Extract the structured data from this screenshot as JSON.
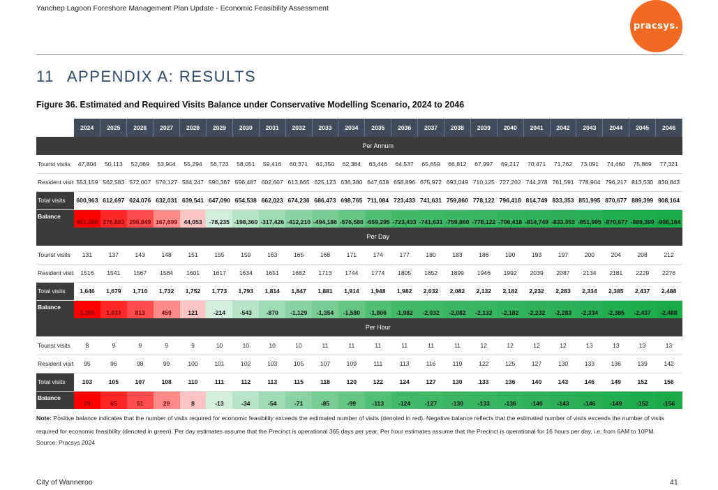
{
  "header": {
    "doc_title": "Yanchep Lagoon Foreshore Management Plan Update - Economic Feasibility Assessment",
    "logo_text": "pracsys."
  },
  "section": {
    "number": "11",
    "title": "APPENDIX A: RESULTS"
  },
  "figure_title": "Figure 36. Estimated and Required Visits Balance under Conservative Modelling Scenario, 2024 to 2046",
  "years": [
    "2024",
    "2025",
    "2026",
    "2027",
    "2028",
    "2029",
    "2030",
    "2031",
    "2032",
    "2033",
    "2034",
    "2035",
    "2036",
    "2037",
    "2038",
    "2039",
    "2040",
    "2041",
    "2042",
    "2043",
    "2044",
    "2045",
    "2046"
  ],
  "row_labels": {
    "tourist": "Tourist visits",
    "resident": "Resident visits",
    "total": "Total visits",
    "balance": "Balance"
  },
  "colors": {
    "positive_strong": "#ff0000",
    "negative_strong": "#1aaa4a",
    "header_bg": "#3f4a5a",
    "section_bg": "#3b3b3b",
    "accent": "#f26a21"
  },
  "sections": [
    {
      "title": "Per Annum",
      "tourist": [
        "47,804",
        "50,113",
        "52,069",
        "53,904",
        "55,294",
        "56,723",
        "58,051",
        "59,416",
        "60,371",
        "61,350",
        "62,384",
        "63,446",
        "64,537",
        "65,659",
        "66,812",
        "67,997",
        "69,217",
        "70,471",
        "71,762",
        "73,091",
        "74,460",
        "75,869",
        "77,321"
      ],
      "resident": [
        "553,159",
        "562,583",
        "572,007",
        "578,127",
        "584,247",
        "590,367",
        "596,487",
        "602,607",
        "613,865",
        "625,123",
        "636,380",
        "647,638",
        "658,896",
        "675,972",
        "693,049",
        "710,125",
        "727,202",
        "744,278",
        "761,591",
        "778,904",
        "796,217",
        "813,530",
        "830,843"
      ],
      "total": [
        "600,963",
        "612,697",
        "624,076",
        "632,031",
        "639,541",
        "647,090",
        "654,538",
        "662,023",
        "674,236",
        "686,473",
        "698,765",
        "711,084",
        "723,433",
        "741,631",
        "759,860",
        "778,122",
        "796,418",
        "814,749",
        "833,353",
        "851,995",
        "870,677",
        "889,399",
        "908,164"
      ],
      "balance": [
        "461,568",
        "376,883",
        "296,849",
        "167,699",
        "44,053",
        "-78,235",
        "-198,360",
        "-317,426",
        "-412,210",
        "-494,186",
        "-576,580",
        "-659,295",
        "-723,433",
        "-741,631",
        "-759,860",
        "-778,122",
        "-796,418",
        "-814,749",
        "-833,353",
        "-851,995",
        "-870,677",
        "-889,399",
        "-908,164"
      ]
    },
    {
      "title": "Per Day",
      "tourist": [
        "131",
        "137",
        "143",
        "148",
        "151",
        "155",
        "159",
        "163",
        "165",
        "168",
        "171",
        "174",
        "177",
        "180",
        "183",
        "186",
        "190",
        "193",
        "197",
        "200",
        "204",
        "208",
        "212"
      ],
      "resident": [
        "1516",
        "1541",
        "1567",
        "1584",
        "1601",
        "1617",
        "1634",
        "1651",
        "1682",
        "1713",
        "1744",
        "1774",
        "1805",
        "1852",
        "1899",
        "1946",
        "1992",
        "2039",
        "2087",
        "2134",
        "2181",
        "2229",
        "2276"
      ],
      "total": [
        "1,646",
        "1,679",
        "1,710",
        "1,732",
        "1,752",
        "1,773",
        "1,793",
        "1,814",
        "1,847",
        "1,881",
        "1,914",
        "1,948",
        "1,982",
        "2,032",
        "2,082",
        "2,132",
        "2,182",
        "2,232",
        "2,283",
        "2,334",
        "2,385",
        "2,437",
        "2,488"
      ],
      "balance": [
        "1,265",
        "1,033",
        "813",
        "459",
        "121",
        "-214",
        "-543",
        "-870",
        "-1,129",
        "-1,354",
        "-1,580",
        "-1,806",
        "-1,982",
        "-2,032",
        "-2,082",
        "-2,132",
        "-2,182",
        "-2,232",
        "-2,283",
        "-2,334",
        "-2,385",
        "-2,437",
        "-2,488"
      ]
    },
    {
      "title": "Per Hour",
      "tourist": [
        "8",
        "9",
        "9",
        "9",
        "9",
        "10",
        "10",
        "10",
        "10",
        "11",
        "11",
        "11",
        "11",
        "11",
        "11",
        "12",
        "12",
        "12",
        "12",
        "13",
        "13",
        "13",
        "13"
      ],
      "resident": [
        "95",
        "96",
        "98",
        "99",
        "100",
        "101",
        "102",
        "103",
        "105",
        "107",
        "109",
        "111",
        "113",
        "116",
        "119",
        "122",
        "125",
        "127",
        "130",
        "133",
        "136",
        "139",
        "142"
      ],
      "total": [
        "103",
        "105",
        "107",
        "108",
        "110",
        "111",
        "112",
        "113",
        "115",
        "118",
        "120",
        "122",
        "124",
        "127",
        "130",
        "133",
        "136",
        "140",
        "143",
        "146",
        "149",
        "152",
        "156"
      ],
      "balance": [
        "79",
        "65",
        "51",
        "29",
        "8",
        "-13",
        "-34",
        "-54",
        "-71",
        "-85",
        "-99",
        "-113",
        "-124",
        "-127",
        "-130",
        "-133",
        "-136",
        "-140",
        "-143",
        "-146",
        "-149",
        "-152",
        "-156"
      ]
    }
  ],
  "note": {
    "label": "Note:",
    "text": " Positive balance indicates that the number of visits required for economic feasibility exceeds the estimated number of visits (denoted in red). Negative balance reflects that the estimated number of visits exceeds the number of visits required for economic feasibility (denoted in green).  Per day estimates assume that the Precinct is operational 365 days per year. Per hour estimates assume that the Precinct is operational for 16 hours per day, i.e. from 6AM to 10PM."
  },
  "source": "Source: Pracsys 2024",
  "footer": {
    "left": "City of Wanneroo",
    "page": "41"
  }
}
